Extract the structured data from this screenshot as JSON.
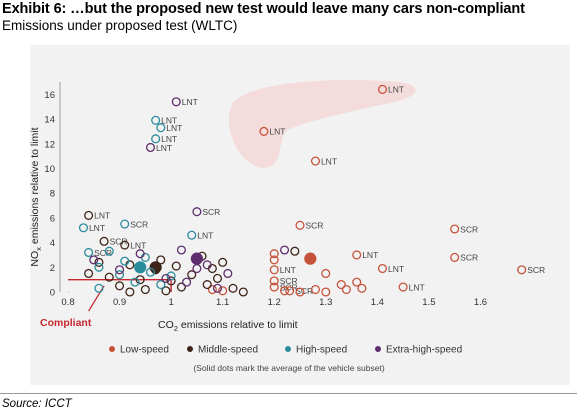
{
  "header": {
    "title": "Exhibit 6: …but the proposed new test would leave many cars non-compliant",
    "subtitle": "Emissions under proposed test (WLTC)"
  },
  "footer": {
    "source": "Source: ICCT"
  },
  "chart_data": {
    "type": "scatter",
    "xlabel": "CO2 emissions relative to limit",
    "ylabel": "NOx emissions relative to limit",
    "xlim": [
      0.8,
      1.7
    ],
    "ylim": [
      0,
      17
    ],
    "xticks": [
      "0.8",
      "0.9",
      "1",
      "1.1",
      "1.2",
      "1.3",
      "1.4",
      "1.5",
      "1.6"
    ],
    "yticks": [
      "0",
      "2",
      "4",
      "6",
      "8",
      "10",
      "12",
      "14",
      "16"
    ],
    "grid": false,
    "compliant_label": "Compliant",
    "legend_position": "bottom",
    "legend_note": "(Solid dots mark the average of the vehicle subset)",
    "colors": {
      "low_speed": "#c5533a",
      "middle_speed": "#3e2418",
      "high_speed": "#2a8c9c",
      "extra_high_speed": "#5d2d6e",
      "cluster_fill": "#f5dcdc",
      "compliant": "#c8272e"
    },
    "series": [
      {
        "name": "Low-speed",
        "color_key": "low_speed",
        "points": [
          {
            "x": 1.41,
            "y": 16.4,
            "label": "LNT"
          },
          {
            "x": 1.18,
            "y": 13.0,
            "label": "LNT"
          },
          {
            "x": 1.28,
            "y": 10.6,
            "label": "LNT"
          },
          {
            "x": 1.25,
            "y": 5.4,
            "label": "SCR"
          },
          {
            "x": 1.55,
            "y": 5.1,
            "label": "SCR"
          },
          {
            "x": 1.55,
            "y": 2.8,
            "label": "SCR"
          },
          {
            "x": 1.36,
            "y": 3.0,
            "label": "LNT"
          },
          {
            "x": 1.41,
            "y": 1.9,
            "label": "LNT"
          },
          {
            "x": 1.68,
            "y": 1.8,
            "label": "SCR"
          },
          {
            "x": 1.45,
            "y": 0.4,
            "label": "LNT"
          },
          {
            "x": 1.2,
            "y": 3.1,
            "label": ""
          },
          {
            "x": 1.2,
            "y": 2.6,
            "label": ""
          },
          {
            "x": 1.2,
            "y": 1.8,
            "label": "LNT"
          },
          {
            "x": 1.2,
            "y": 0.9,
            "label": "SCR"
          },
          {
            "x": 1.2,
            "y": 0.4,
            "label": "SCR"
          },
          {
            "x": 1.23,
            "y": 0.1,
            "label": "SCR"
          },
          {
            "x": 1.3,
            "y": 1.5,
            "label": ""
          },
          {
            "x": 1.33,
            "y": 0.6,
            "label": ""
          },
          {
            "x": 1.34,
            "y": 0.2,
            "label": ""
          },
          {
            "x": 1.36,
            "y": 0.8,
            "label": ""
          },
          {
            "x": 1.37,
            "y": 0.3,
            "label": ""
          },
          {
            "x": 1.25,
            "y": 0.0,
            "label": ""
          },
          {
            "x": 1.22,
            "y": 0.1,
            "label": ""
          },
          {
            "x": 1.28,
            "y": 0.2,
            "label": ""
          },
          {
            "x": 1.3,
            "y": 0.0,
            "label": ""
          },
          {
            "x": 1.08,
            "y": 0.2,
            "label": ""
          },
          {
            "x": 1.1,
            "y": 0.1,
            "label": ""
          },
          {
            "x": 1.27,
            "y": 2.7,
            "label": "",
            "average": true
          }
        ]
      },
      {
        "name": "Middle-speed",
        "color_key": "middle_speed",
        "points": [
          {
            "x": 0.84,
            "y": 6.2,
            "label": "LNT"
          },
          {
            "x": 0.87,
            "y": 4.1,
            "label": "SCR"
          },
          {
            "x": 0.91,
            "y": 3.8,
            "label": "LNT"
          },
          {
            "x": 0.84,
            "y": 1.5,
            "label": ""
          },
          {
            "x": 0.86,
            "y": 2.4,
            "label": ""
          },
          {
            "x": 0.88,
            "y": 1.2,
            "label": ""
          },
          {
            "x": 0.9,
            "y": 0.5,
            "label": ""
          },
          {
            "x": 0.92,
            "y": 2.2,
            "label": ""
          },
          {
            "x": 0.94,
            "y": 1.0,
            "label": ""
          },
          {
            "x": 0.95,
            "y": 0.2,
            "label": ""
          },
          {
            "x": 0.97,
            "y": 1.8,
            "label": ""
          },
          {
            "x": 0.98,
            "y": 2.6,
            "label": ""
          },
          {
            "x": 1.0,
            "y": 0.9,
            "label": ""
          },
          {
            "x": 1.01,
            "y": 2.1,
            "label": ""
          },
          {
            "x": 1.02,
            "y": 0.4,
            "label": ""
          },
          {
            "x": 1.04,
            "y": 1.4,
            "label": ""
          },
          {
            "x": 1.06,
            "y": 2.9,
            "label": ""
          },
          {
            "x": 1.07,
            "y": 0.6,
            "label": ""
          },
          {
            "x": 1.08,
            "y": 1.9,
            "label": ""
          },
          {
            "x": 1.09,
            "y": 1.1,
            "label": ""
          },
          {
            "x": 1.1,
            "y": 2.4,
            "label": ""
          },
          {
            "x": 1.12,
            "y": 0.3,
            "label": ""
          },
          {
            "x": 1.14,
            "y": 0.0,
            "label": ""
          },
          {
            "x": 1.24,
            "y": 3.3,
            "label": ""
          },
          {
            "x": 0.92,
            "y": 0.0,
            "label": ""
          },
          {
            "x": 0.99,
            "y": 0.1,
            "label": ""
          },
          {
            "x": 0.97,
            "y": 2.0,
            "label": "",
            "average": true
          }
        ]
      },
      {
        "name": "High-speed",
        "color_key": "high_speed",
        "points": [
          {
            "x": 0.97,
            "y": 13.9,
            "label": "LNT"
          },
          {
            "x": 0.98,
            "y": 13.3,
            "label": "LNT"
          },
          {
            "x": 0.97,
            "y": 12.4,
            "label": "LNT"
          },
          {
            "x": 0.83,
            "y": 5.2,
            "label": "LNT"
          },
          {
            "x": 0.91,
            "y": 5.5,
            "label": "SCR"
          },
          {
            "x": 1.04,
            "y": 4.6,
            "label": "LNT"
          },
          {
            "x": 0.84,
            "y": 3.2,
            "label": "SCR"
          },
          {
            "x": 0.86,
            "y": 2.0,
            "label": ""
          },
          {
            "x": 0.88,
            "y": 3.3,
            "label": ""
          },
          {
            "x": 0.9,
            "y": 1.4,
            "label": ""
          },
          {
            "x": 0.91,
            "y": 2.5,
            "label": ""
          },
          {
            "x": 0.93,
            "y": 0.8,
            "label": ""
          },
          {
            "x": 0.95,
            "y": 2.8,
            "label": ""
          },
          {
            "x": 0.96,
            "y": 1.6,
            "label": ""
          },
          {
            "x": 0.98,
            "y": 0.6,
            "label": ""
          },
          {
            "x": 1.0,
            "y": 1.3,
            "label": ""
          },
          {
            "x": 0.86,
            "y": 0.3,
            "label": ""
          },
          {
            "x": 0.94,
            "y": 2.0,
            "label": "",
            "average": true
          }
        ]
      },
      {
        "name": "Extra-high-speed",
        "color_key": "extra_high_speed",
        "points": [
          {
            "x": 1.01,
            "y": 15.4,
            "label": "LNT"
          },
          {
            "x": 0.96,
            "y": 11.7,
            "label": "LNT"
          },
          {
            "x": 1.05,
            "y": 6.5,
            "label": "SCR"
          },
          {
            "x": 0.85,
            "y": 2.6,
            "label": ""
          },
          {
            "x": 0.9,
            "y": 1.8,
            "label": ""
          },
          {
            "x": 0.94,
            "y": 3.1,
            "label": ""
          },
          {
            "x": 0.99,
            "y": 1.1,
            "label": ""
          },
          {
            "x": 1.02,
            "y": 3.4,
            "label": ""
          },
          {
            "x": 1.03,
            "y": 0.8,
            "label": ""
          },
          {
            "x": 1.05,
            "y": 1.9,
            "label": ""
          },
          {
            "x": 1.07,
            "y": 2.2,
            "label": ""
          },
          {
            "x": 1.09,
            "y": 0.3,
            "label": ""
          },
          {
            "x": 1.11,
            "y": 1.5,
            "label": ""
          },
          {
            "x": 1.22,
            "y": 3.4,
            "label": ""
          },
          {
            "x": 1.05,
            "y": 2.7,
            "label": "",
            "average": true
          }
        ]
      }
    ]
  }
}
